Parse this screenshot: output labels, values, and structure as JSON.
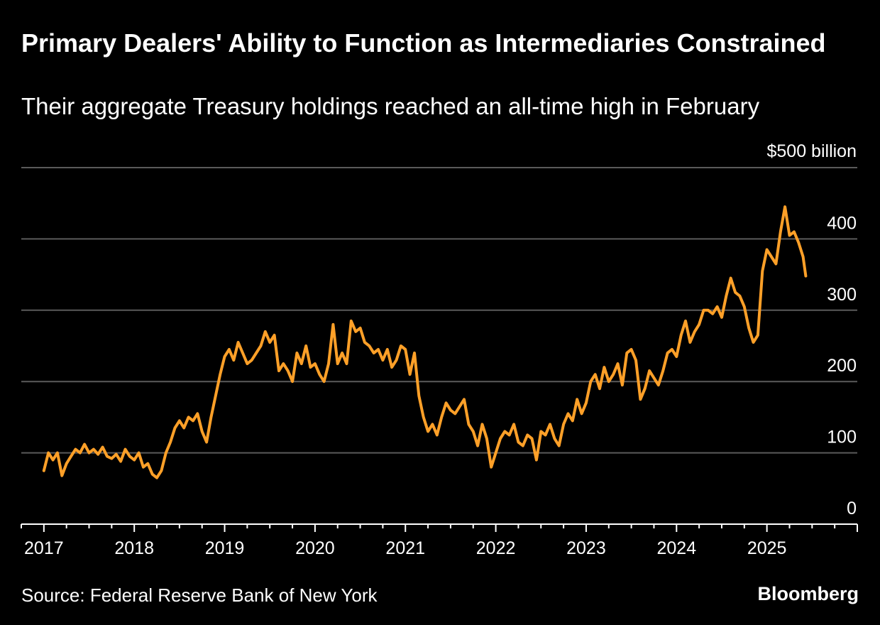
{
  "chart_data": {
    "type": "line",
    "title": "Primary Dealers' Ability to Function as Intermediaries Constrained",
    "subtitle": "Their aggregate Treasury holdings reached an all-time high in February",
    "y_unit_label": "$500 billion",
    "ylim": [
      0,
      500
    ],
    "y_ticks": [
      {
        "value": 0,
        "label": "0"
      },
      {
        "value": 100,
        "label": "100"
      },
      {
        "value": 200,
        "label": "200"
      },
      {
        "value": 300,
        "label": "300"
      },
      {
        "value": 400,
        "label": "400"
      }
    ],
    "xlim": [
      2016.75,
      2026.0
    ],
    "x_ticks": [
      {
        "value": 2017,
        "label": "2017"
      },
      {
        "value": 2018,
        "label": "2018"
      },
      {
        "value": 2019,
        "label": "2019"
      },
      {
        "value": 2020,
        "label": "2020"
      },
      {
        "value": 2021,
        "label": "2021"
      },
      {
        "value": 2022,
        "label": "2022"
      },
      {
        "value": 2023,
        "label": "2023"
      },
      {
        "value": 2024,
        "label": "2024"
      },
      {
        "value": 2025,
        "label": "2025"
      }
    ],
    "grid": true,
    "legend": "none",
    "series": [
      {
        "color": "#FFA028",
        "points": [
          [
            2017.0,
            75
          ],
          [
            2017.05,
            100
          ],
          [
            2017.1,
            90
          ],
          [
            2017.15,
            100
          ],
          [
            2017.2,
            68
          ],
          [
            2017.25,
            85
          ],
          [
            2017.3,
            95
          ],
          [
            2017.35,
            105
          ],
          [
            2017.4,
            100
          ],
          [
            2017.45,
            112
          ],
          [
            2017.5,
            100
          ],
          [
            2017.55,
            105
          ],
          [
            2017.6,
            98
          ],
          [
            2017.65,
            108
          ],
          [
            2017.7,
            95
          ],
          [
            2017.75,
            92
          ],
          [
            2017.8,
            98
          ],
          [
            2017.85,
            88
          ],
          [
            2017.9,
            105
          ],
          [
            2017.95,
            95
          ],
          [
            2018.0,
            90
          ],
          [
            2018.05,
            100
          ],
          [
            2018.1,
            80
          ],
          [
            2018.15,
            85
          ],
          [
            2018.2,
            70
          ],
          [
            2018.25,
            65
          ],
          [
            2018.3,
            75
          ],
          [
            2018.35,
            100
          ],
          [
            2018.4,
            115
          ],
          [
            2018.45,
            135
          ],
          [
            2018.5,
            145
          ],
          [
            2018.55,
            135
          ],
          [
            2018.6,
            150
          ],
          [
            2018.65,
            145
          ],
          [
            2018.7,
            155
          ],
          [
            2018.75,
            130
          ],
          [
            2018.8,
            115
          ],
          [
            2018.85,
            150
          ],
          [
            2018.9,
            180
          ],
          [
            2018.95,
            210
          ],
          [
            2019.0,
            235
          ],
          [
            2019.05,
            245
          ],
          [
            2019.1,
            230
          ],
          [
            2019.15,
            255
          ],
          [
            2019.2,
            240
          ],
          [
            2019.25,
            225
          ],
          [
            2019.3,
            230
          ],
          [
            2019.35,
            240
          ],
          [
            2019.4,
            250
          ],
          [
            2019.45,
            270
          ],
          [
            2019.5,
            255
          ],
          [
            2019.55,
            265
          ],
          [
            2019.6,
            215
          ],
          [
            2019.65,
            225
          ],
          [
            2019.7,
            215
          ],
          [
            2019.75,
            200
          ],
          [
            2019.8,
            240
          ],
          [
            2019.85,
            225
          ],
          [
            2019.9,
            250
          ],
          [
            2019.95,
            220
          ],
          [
            2020.0,
            225
          ],
          [
            2020.05,
            210
          ],
          [
            2020.1,
            200
          ],
          [
            2020.15,
            225
          ],
          [
            2020.2,
            280
          ],
          [
            2020.25,
            225
          ],
          [
            2020.3,
            240
          ],
          [
            2020.35,
            225
          ],
          [
            2020.4,
            285
          ],
          [
            2020.45,
            270
          ],
          [
            2020.5,
            275
          ],
          [
            2020.55,
            255
          ],
          [
            2020.6,
            250
          ],
          [
            2020.65,
            240
          ],
          [
            2020.7,
            245
          ],
          [
            2020.75,
            230
          ],
          [
            2020.8,
            245
          ],
          [
            2020.85,
            220
          ],
          [
            2020.9,
            230
          ],
          [
            2020.95,
            250
          ],
          [
            2021.0,
            245
          ],
          [
            2021.05,
            210
          ],
          [
            2021.1,
            240
          ],
          [
            2021.15,
            180
          ],
          [
            2021.2,
            150
          ],
          [
            2021.25,
            130
          ],
          [
            2021.3,
            140
          ],
          [
            2021.35,
            125
          ],
          [
            2021.4,
            150
          ],
          [
            2021.45,
            170
          ],
          [
            2021.5,
            160
          ],
          [
            2021.55,
            155
          ],
          [
            2021.6,
            165
          ],
          [
            2021.65,
            175
          ],
          [
            2021.7,
            140
          ],
          [
            2021.75,
            130
          ],
          [
            2021.8,
            110
          ],
          [
            2021.85,
            140
          ],
          [
            2021.9,
            120
          ],
          [
            2021.95,
            80
          ],
          [
            2022.0,
            100
          ],
          [
            2022.05,
            120
          ],
          [
            2022.1,
            130
          ],
          [
            2022.15,
            125
          ],
          [
            2022.2,
            140
          ],
          [
            2022.25,
            115
          ],
          [
            2022.3,
            110
          ],
          [
            2022.35,
            125
          ],
          [
            2022.4,
            120
          ],
          [
            2022.45,
            90
          ],
          [
            2022.5,
            130
          ],
          [
            2022.55,
            125
          ],
          [
            2022.6,
            140
          ],
          [
            2022.65,
            120
          ],
          [
            2022.7,
            110
          ],
          [
            2022.75,
            140
          ],
          [
            2022.8,
            155
          ],
          [
            2022.85,
            145
          ],
          [
            2022.9,
            175
          ],
          [
            2022.95,
            155
          ],
          [
            2023.0,
            170
          ],
          [
            2023.05,
            200
          ],
          [
            2023.1,
            210
          ],
          [
            2023.15,
            190
          ],
          [
            2023.2,
            220
          ],
          [
            2023.25,
            200
          ],
          [
            2023.3,
            210
          ],
          [
            2023.35,
            225
          ],
          [
            2023.4,
            195
          ],
          [
            2023.45,
            240
          ],
          [
            2023.5,
            245
          ],
          [
            2023.55,
            230
          ],
          [
            2023.6,
            175
          ],
          [
            2023.65,
            190
          ],
          [
            2023.7,
            215
          ],
          [
            2023.75,
            205
          ],
          [
            2023.8,
            195
          ],
          [
            2023.85,
            215
          ],
          [
            2023.9,
            240
          ],
          [
            2023.95,
            245
          ],
          [
            2024.0,
            235
          ],
          [
            2024.05,
            265
          ],
          [
            2024.1,
            285
          ],
          [
            2024.15,
            255
          ],
          [
            2024.2,
            270
          ],
          [
            2024.25,
            280
          ],
          [
            2024.3,
            300
          ],
          [
            2024.35,
            300
          ],
          [
            2024.4,
            295
          ],
          [
            2024.45,
            305
          ],
          [
            2024.5,
            290
          ],
          [
            2024.55,
            320
          ],
          [
            2024.6,
            345
          ],
          [
            2024.65,
            325
          ],
          [
            2024.7,
            320
          ],
          [
            2024.75,
            305
          ],
          [
            2024.8,
            275
          ],
          [
            2024.85,
            255
          ],
          [
            2024.9,
            265
          ],
          [
            2024.95,
            355
          ],
          [
            2025.0,
            385
          ],
          [
            2025.05,
            375
          ],
          [
            2025.1,
            365
          ],
          [
            2025.15,
            410
          ],
          [
            2025.2,
            445
          ],
          [
            2025.25,
            405
          ],
          [
            2025.3,
            410
          ],
          [
            2025.35,
            395
          ],
          [
            2025.4,
            375
          ],
          [
            2025.43,
            348
          ]
        ]
      }
    ]
  },
  "footer": {
    "source": "Source: Federal Reserve Bank of New York",
    "brand": "Bloomberg"
  }
}
